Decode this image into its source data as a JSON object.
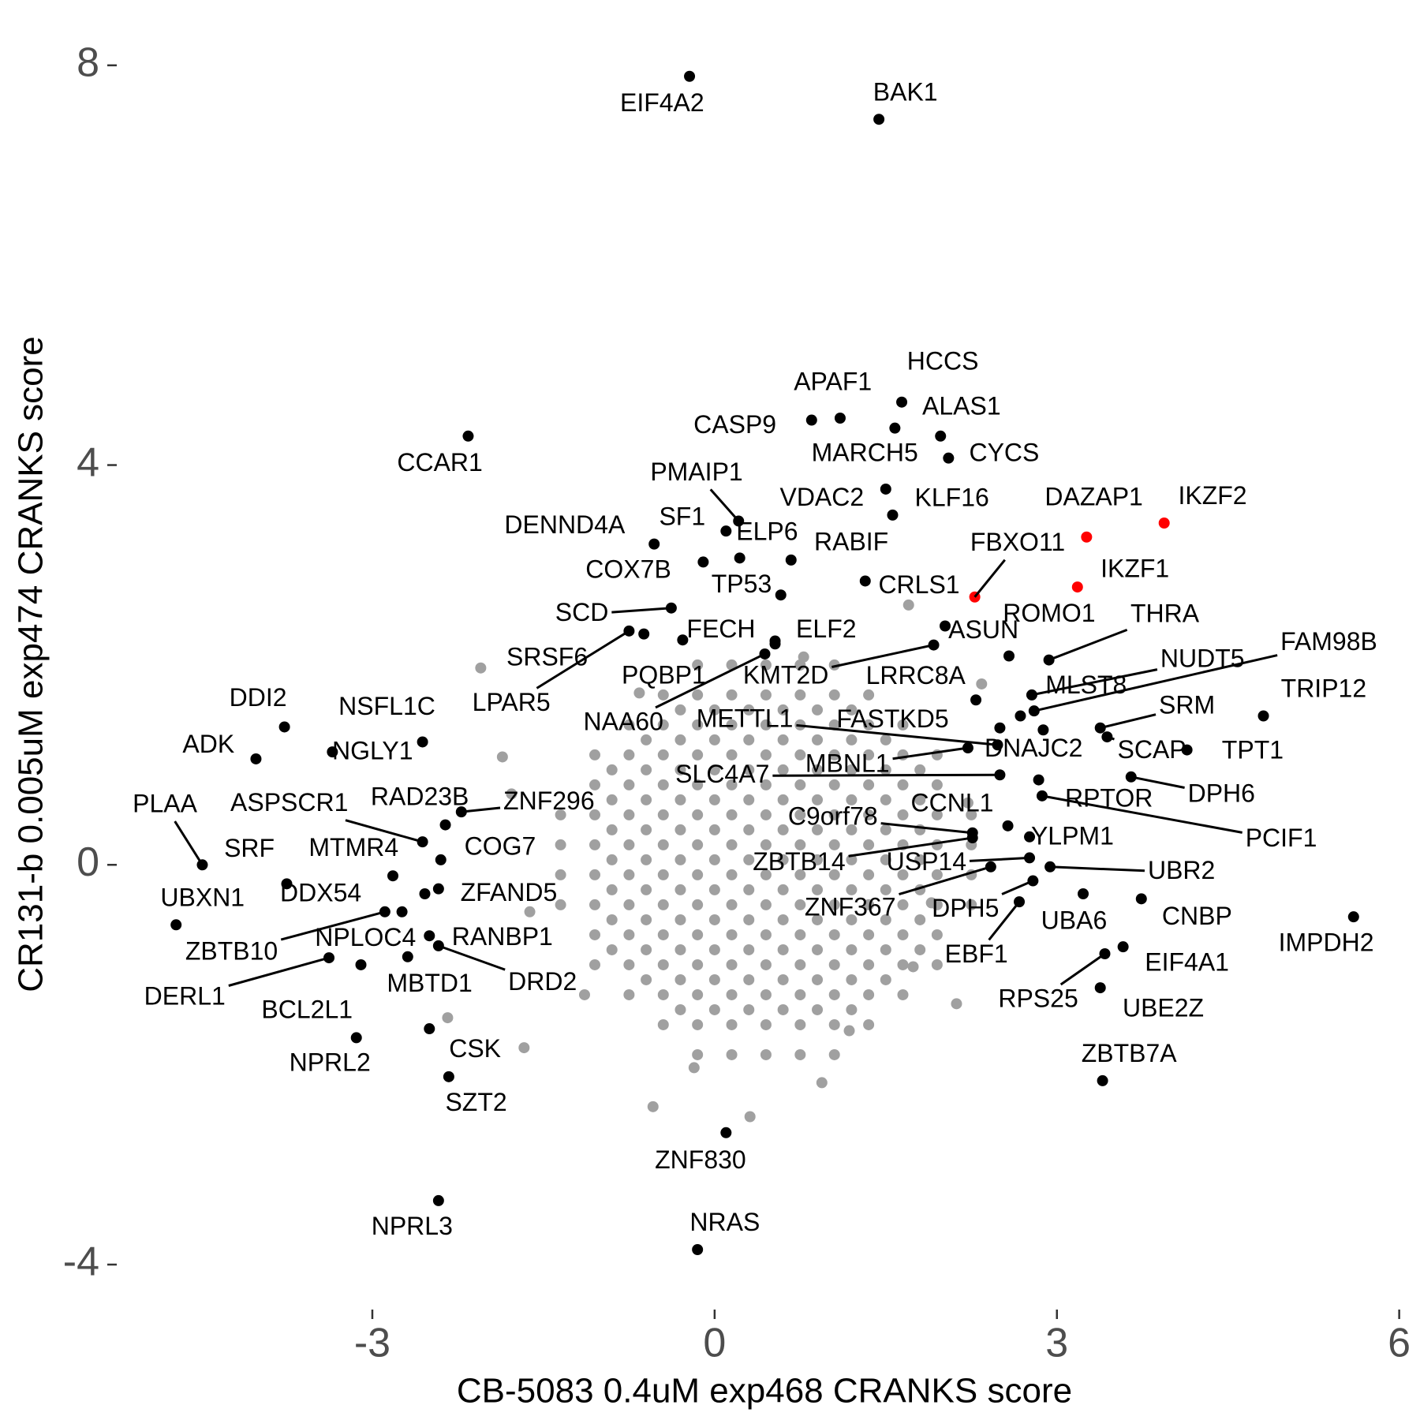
{
  "chart_data": {
    "type": "scatter",
    "x_label": "CB-5083 0.4uM exp468 CRANKS score",
    "y_label": "CR131-b 0.005uM exp474 CRANKS score",
    "xlim": [
      -5.24,
      6.12
    ],
    "ylim": [
      -4.45,
      8.48
    ],
    "xticks": [
      -3,
      0,
      3,
      6
    ],
    "yticks": [
      -4,
      0,
      4,
      8
    ],
    "series": [
      {
        "color": "#a0a0a0",
        "x": [
          -0.15,
          0.15,
          0.45,
          0.75,
          1.05,
          -0.45,
          -0.15,
          0.15,
          0.45,
          0.75,
          1.05,
          1.35,
          -0.75,
          -0.45,
          -0.15,
          0.15,
          0.45,
          0.75,
          1.05,
          1.35,
          1.65,
          -1.05,
          -0.75,
          -0.45,
          -0.15,
          0.15,
          0.45,
          0.75,
          1.05,
          1.35,
          1.65,
          1.95,
          -1.05,
          -0.75,
          -0.45,
          -0.15,
          0.15,
          0.45,
          0.75,
          1.05,
          1.35,
          1.65,
          1.95,
          -1.35,
          -1.05,
          -0.75,
          -0.45,
          -0.15,
          0.15,
          0.45,
          0.75,
          1.05,
          1.35,
          1.65,
          1.95,
          2.25,
          -1.35,
          -1.05,
          -0.75,
          -0.45,
          -0.15,
          0.15,
          0.45,
          0.75,
          1.05,
          1.35,
          1.65,
          1.95,
          2.25,
          -1.35,
          -1.05,
          -0.75,
          -0.45,
          -0.15,
          0.15,
          0.45,
          0.75,
          1.05,
          1.35,
          1.65,
          1.95,
          2.25,
          -1.35,
          -1.05,
          -0.75,
          -0.45,
          -0.15,
          0.15,
          0.45,
          0.75,
          1.05,
          1.35,
          1.65,
          1.95,
          2.25,
          -1.05,
          -0.75,
          -0.45,
          -0.15,
          0.15,
          0.45,
          0.75,
          1.05,
          1.35,
          1.65,
          1.95,
          -1.05,
          -0.75,
          -0.45,
          -0.15,
          0.15,
          0.45,
          0.75,
          1.05,
          1.35,
          1.65,
          1.95,
          -0.75,
          -0.45,
          -0.15,
          0.15,
          0.45,
          0.75,
          1.05,
          1.35,
          1.65,
          -0.45,
          -0.15,
          0.15,
          0.45,
          0.75,
          1.05,
          1.35,
          -0.15,
          0.15,
          0.45,
          0.75,
          1.05,
          -0.3,
          0,
          0.3,
          0.6,
          0.9,
          1.2,
          -0.6,
          -0.3,
          0,
          0.3,
          0.6,
          0.9,
          1.2,
          1.5,
          -0.9,
          -0.6,
          -0.3,
          0,
          0.3,
          0.6,
          0.9,
          1.2,
          1.5,
          1.8,
          -0.9,
          -0.6,
          -0.3,
          0,
          0.3,
          0.6,
          0.9,
          1.2,
          1.5,
          1.8,
          -0.9,
          -0.6,
          -0.3,
          0,
          0.3,
          0.6,
          0.9,
          1.2,
          1.5,
          1.8,
          -0.9,
          -0.6,
          -0.3,
          0,
          0.3,
          0.6,
          0.9,
          1.2,
          1.5,
          1.8,
          -0.9,
          -0.6,
          -0.3,
          0,
          0.3,
          0.6,
          0.9,
          1.2,
          1.5,
          1.8,
          -0.9,
          -0.6,
          -0.3,
          0,
          0.3,
          0.6,
          0.9,
          1.2,
          1.5,
          1.8,
          -0.9,
          -0.6,
          -0.3,
          0,
          0.3,
          0.6,
          0.9,
          1.2,
          1.5,
          1.8,
          -0.6,
          -0.3,
          0,
          0.3,
          0.6,
          0.9,
          1.2,
          1.5,
          -0.3,
          0,
          0.3,
          0.6,
          0.9,
          1.2,
          1.7,
          2.12,
          -1.67,
          -2.34,
          -0.54,
          0.31,
          0.94,
          1.74,
          1.9,
          2.34,
          -2.05,
          -1.78,
          -1.86,
          -1.62,
          -1.14,
          -0.18,
          2.22,
          1.18,
          -0.66,
          0.78
        ],
        "y": [
          -1.9,
          -1.9,
          -1.9,
          -1.9,
          -1.9,
          -1.6,
          -1.6,
          -1.6,
          -1.6,
          -1.6,
          -1.6,
          -1.6,
          -1.3,
          -1.3,
          -1.3,
          -1.3,
          -1.3,
          -1.3,
          -1.3,
          -1.3,
          -1.3,
          -1.0,
          -1.0,
          -1.0,
          -1.0,
          -1.0,
          -1.0,
          -1.0,
          -1.0,
          -1.0,
          -1.0,
          -1.0,
          -0.7,
          -0.7,
          -0.7,
          -0.7,
          -0.7,
          -0.7,
          -0.7,
          -0.7,
          -0.7,
          -0.7,
          -0.7,
          -0.4,
          -0.4,
          -0.4,
          -0.4,
          -0.4,
          -0.4,
          -0.4,
          -0.4,
          -0.4,
          -0.4,
          -0.4,
          -0.4,
          -0.4,
          -0.1,
          -0.1,
          -0.1,
          -0.1,
          -0.1,
          -0.1,
          -0.1,
          -0.1,
          -0.1,
          -0.1,
          -0.1,
          -0.1,
          -0.1,
          0.2,
          0.2,
          0.2,
          0.2,
          0.2,
          0.2,
          0.2,
          0.2,
          0.2,
          0.2,
          0.2,
          0.2,
          0.2,
          0.5,
          0.5,
          0.5,
          0.5,
          0.5,
          0.5,
          0.5,
          0.5,
          0.5,
          0.5,
          0.5,
          0.5,
          0.5,
          0.8,
          0.8,
          0.8,
          0.8,
          0.8,
          0.8,
          0.8,
          0.8,
          0.8,
          0.8,
          0.8,
          1.1,
          1.1,
          1.1,
          1.1,
          1.1,
          1.1,
          1.1,
          1.1,
          1.1,
          1.1,
          1.1,
          1.4,
          1.4,
          1.4,
          1.4,
          1.4,
          1.4,
          1.4,
          1.4,
          1.4,
          1.7,
          1.7,
          1.7,
          1.7,
          1.7,
          1.7,
          1.7,
          2.0,
          2.0,
          2.0,
          2.0,
          2.0,
          -1.45,
          -1.45,
          -1.45,
          -1.45,
          -1.45,
          -1.45,
          -1.15,
          -1.15,
          -1.15,
          -1.15,
          -1.15,
          -1.15,
          -1.15,
          -1.15,
          -0.85,
          -0.85,
          -0.85,
          -0.85,
          -0.85,
          -0.85,
          -0.85,
          -0.85,
          -0.85,
          -0.85,
          -0.55,
          -0.55,
          -0.55,
          -0.55,
          -0.55,
          -0.55,
          -0.55,
          -0.55,
          -0.55,
          -0.55,
          -0.25,
          -0.25,
          -0.25,
          -0.25,
          -0.25,
          -0.25,
          -0.25,
          -0.25,
          -0.25,
          -0.25,
          0.05,
          0.05,
          0.05,
          0.05,
          0.05,
          0.05,
          0.05,
          0.05,
          0.05,
          0.05,
          0.35,
          0.35,
          0.35,
          0.35,
          0.35,
          0.35,
          0.35,
          0.35,
          0.35,
          0.35,
          0.65,
          0.65,
          0.65,
          0.65,
          0.65,
          0.65,
          0.65,
          0.65,
          0.65,
          0.65,
          0.95,
          0.95,
          0.95,
          0.95,
          0.95,
          0.95,
          0.95,
          0.95,
          0.95,
          0.95,
          1.25,
          1.25,
          1.25,
          1.25,
          1.25,
          1.25,
          1.25,
          1.25,
          1.55,
          1.55,
          1.55,
          1.55,
          1.55,
          1.55,
          2.6,
          -1.39,
          -1.83,
          -1.53,
          -2.42,
          -2.52,
          -2.18,
          -1.02,
          -0.38,
          1.81,
          1.97,
          0.71,
          1.08,
          -0.47,
          -1.3,
          -2.03,
          0.62,
          -1.66,
          1.72,
          2.08
        ]
      },
      {
        "color": "#000000",
        "labels": [
          "EIF4A2",
          "BAK1",
          "HCCS",
          "APAF1",
          "CASP9",
          "ALAS1",
          "MARCH5",
          "CYCS",
          "CCAR1",
          "PMAIP1",
          "VDAC2",
          "KLF16",
          "DENND4A",
          "SF1",
          "ELP6",
          "RABIF",
          "COX7B",
          "TP53",
          "CRLS1",
          "SCD",
          "ROMO1",
          "THRA",
          "FECH",
          "ELF2",
          "ASUN",
          "SRSF6",
          "LPAR5",
          "FAM98B",
          "NUDT5",
          "PQBP1",
          "KMT2D",
          "LRRC8A",
          "MLST8",
          "TRIP12",
          "SRM",
          "NAA60",
          "METTL1",
          "FASTKD5",
          "DNAJC2",
          "SCAP",
          "TPT1",
          "MBNL1",
          "SLC4A7",
          "DPH6",
          "RPTOR",
          "PCIF1",
          "CCNL1",
          "C9orf78",
          "YLPM1",
          "ZBTB14",
          "USP14",
          "UBR2",
          "ZNF367",
          "DPH5",
          "CNBP",
          "UBA6",
          "IMPDH2",
          "EBF1",
          "EIF4A1",
          "RPS25",
          "UBE2Z",
          "ZBTB7A",
          "ZNF830",
          "NRAS",
          "NPRL3",
          "CSK",
          "SZT2",
          "NPRL2",
          "BCL2L1",
          "DERL1",
          "MBTD1",
          "DRD2",
          "ZBTB10",
          "NPLOC4",
          "RANBP1",
          "UBXN1",
          "DDX54",
          "ZFAND5",
          "MTMR4",
          "PLAA",
          "SRF",
          "COG7",
          "ASPSCR1",
          "RAD23B",
          "ZNF296",
          "ADK",
          "DDI2",
          "NSFL1C",
          "NGLY1"
        ],
        "x": [
          -0.22,
          1.44,
          1.64,
          1.1,
          0.85,
          1.58,
          1.98,
          2.05,
          -2.16,
          0.21,
          1.5,
          1.56,
          -0.53,
          0.1,
          0.22,
          0.67,
          -0.1,
          0.58,
          1.32,
          -0.38,
          2.58,
          2.93,
          -0.28,
          0.53,
          2.02,
          -0.62,
          -0.75,
          2.8,
          2.78,
          0.53,
          1.92,
          2.29,
          2.68,
          4.81,
          3.38,
          0.44,
          2.48,
          2.88,
          2.5,
          3.44,
          4.14,
          2.22,
          2.5,
          3.65,
          2.84,
          2.87,
          2.57,
          2.26,
          2.76,
          2.26,
          2.76,
          2.94,
          2.42,
          2.79,
          3.74,
          3.23,
          5.6,
          2.67,
          3.58,
          3.42,
          3.38,
          3.4,
          0.1,
          -0.15,
          -2.42,
          -2.5,
          -2.33,
          -3.14,
          -3.1,
          -3.38,
          -2.69,
          -2.42,
          -2.89,
          -2.74,
          -2.5,
          -4.72,
          -2.54,
          -2.42,
          -2.82,
          -4.49,
          -3.75,
          -2.4,
          -2.56,
          -2.36,
          -2.22,
          -4.02,
          -3.77,
          -2.56,
          -3.35
        ],
        "y": [
          7.89,
          7.46,
          4.63,
          4.47,
          4.45,
          4.37,
          4.29,
          4.07,
          4.29,
          3.44,
          3.76,
          3.5,
          3.21,
          3.34,
          3.07,
          3.05,
          3.03,
          2.7,
          2.84,
          2.57,
          2.09,
          2.05,
          2.25,
          2.24,
          2.39,
          2.31,
          2.34,
          1.54,
          1.7,
          2.21,
          2.2,
          1.65,
          1.49,
          1.49,
          1.37,
          2.11,
          1.2,
          1.35,
          1.37,
          1.28,
          1.15,
          1.17,
          0.9,
          0.88,
          0.85,
          0.69,
          0.39,
          0.32,
          0.28,
          0.27,
          0.07,
          -0.02,
          -0.02,
          -0.16,
          -0.34,
          -0.29,
          -0.52,
          -0.37,
          -0.82,
          -0.89,
          -1.23,
          -2.16,
          -2.68,
          -3.85,
          -3.36,
          -1.64,
          -2.12,
          -1.73,
          -1.0,
          -0.93,
          -0.92,
          -0.81,
          -0.47,
          -0.47,
          -0.71,
          -0.6,
          -0.29,
          -0.24,
          -0.11,
          0.0,
          -0.19,
          0.05,
          0.23,
          0.4,
          0.53,
          1.06,
          1.38,
          1.23,
          1.13
        ]
      },
      {
        "color": "#ff0000",
        "labels": [
          "DAZAP1",
          "IKZF2",
          "FBXO11",
          "IKZF1"
        ],
        "x": [
          3.26,
          3.94,
          2.28,
          3.18
        ],
        "y": [
          3.28,
          3.42,
          2.68,
          2.78
        ]
      }
    ]
  }
}
